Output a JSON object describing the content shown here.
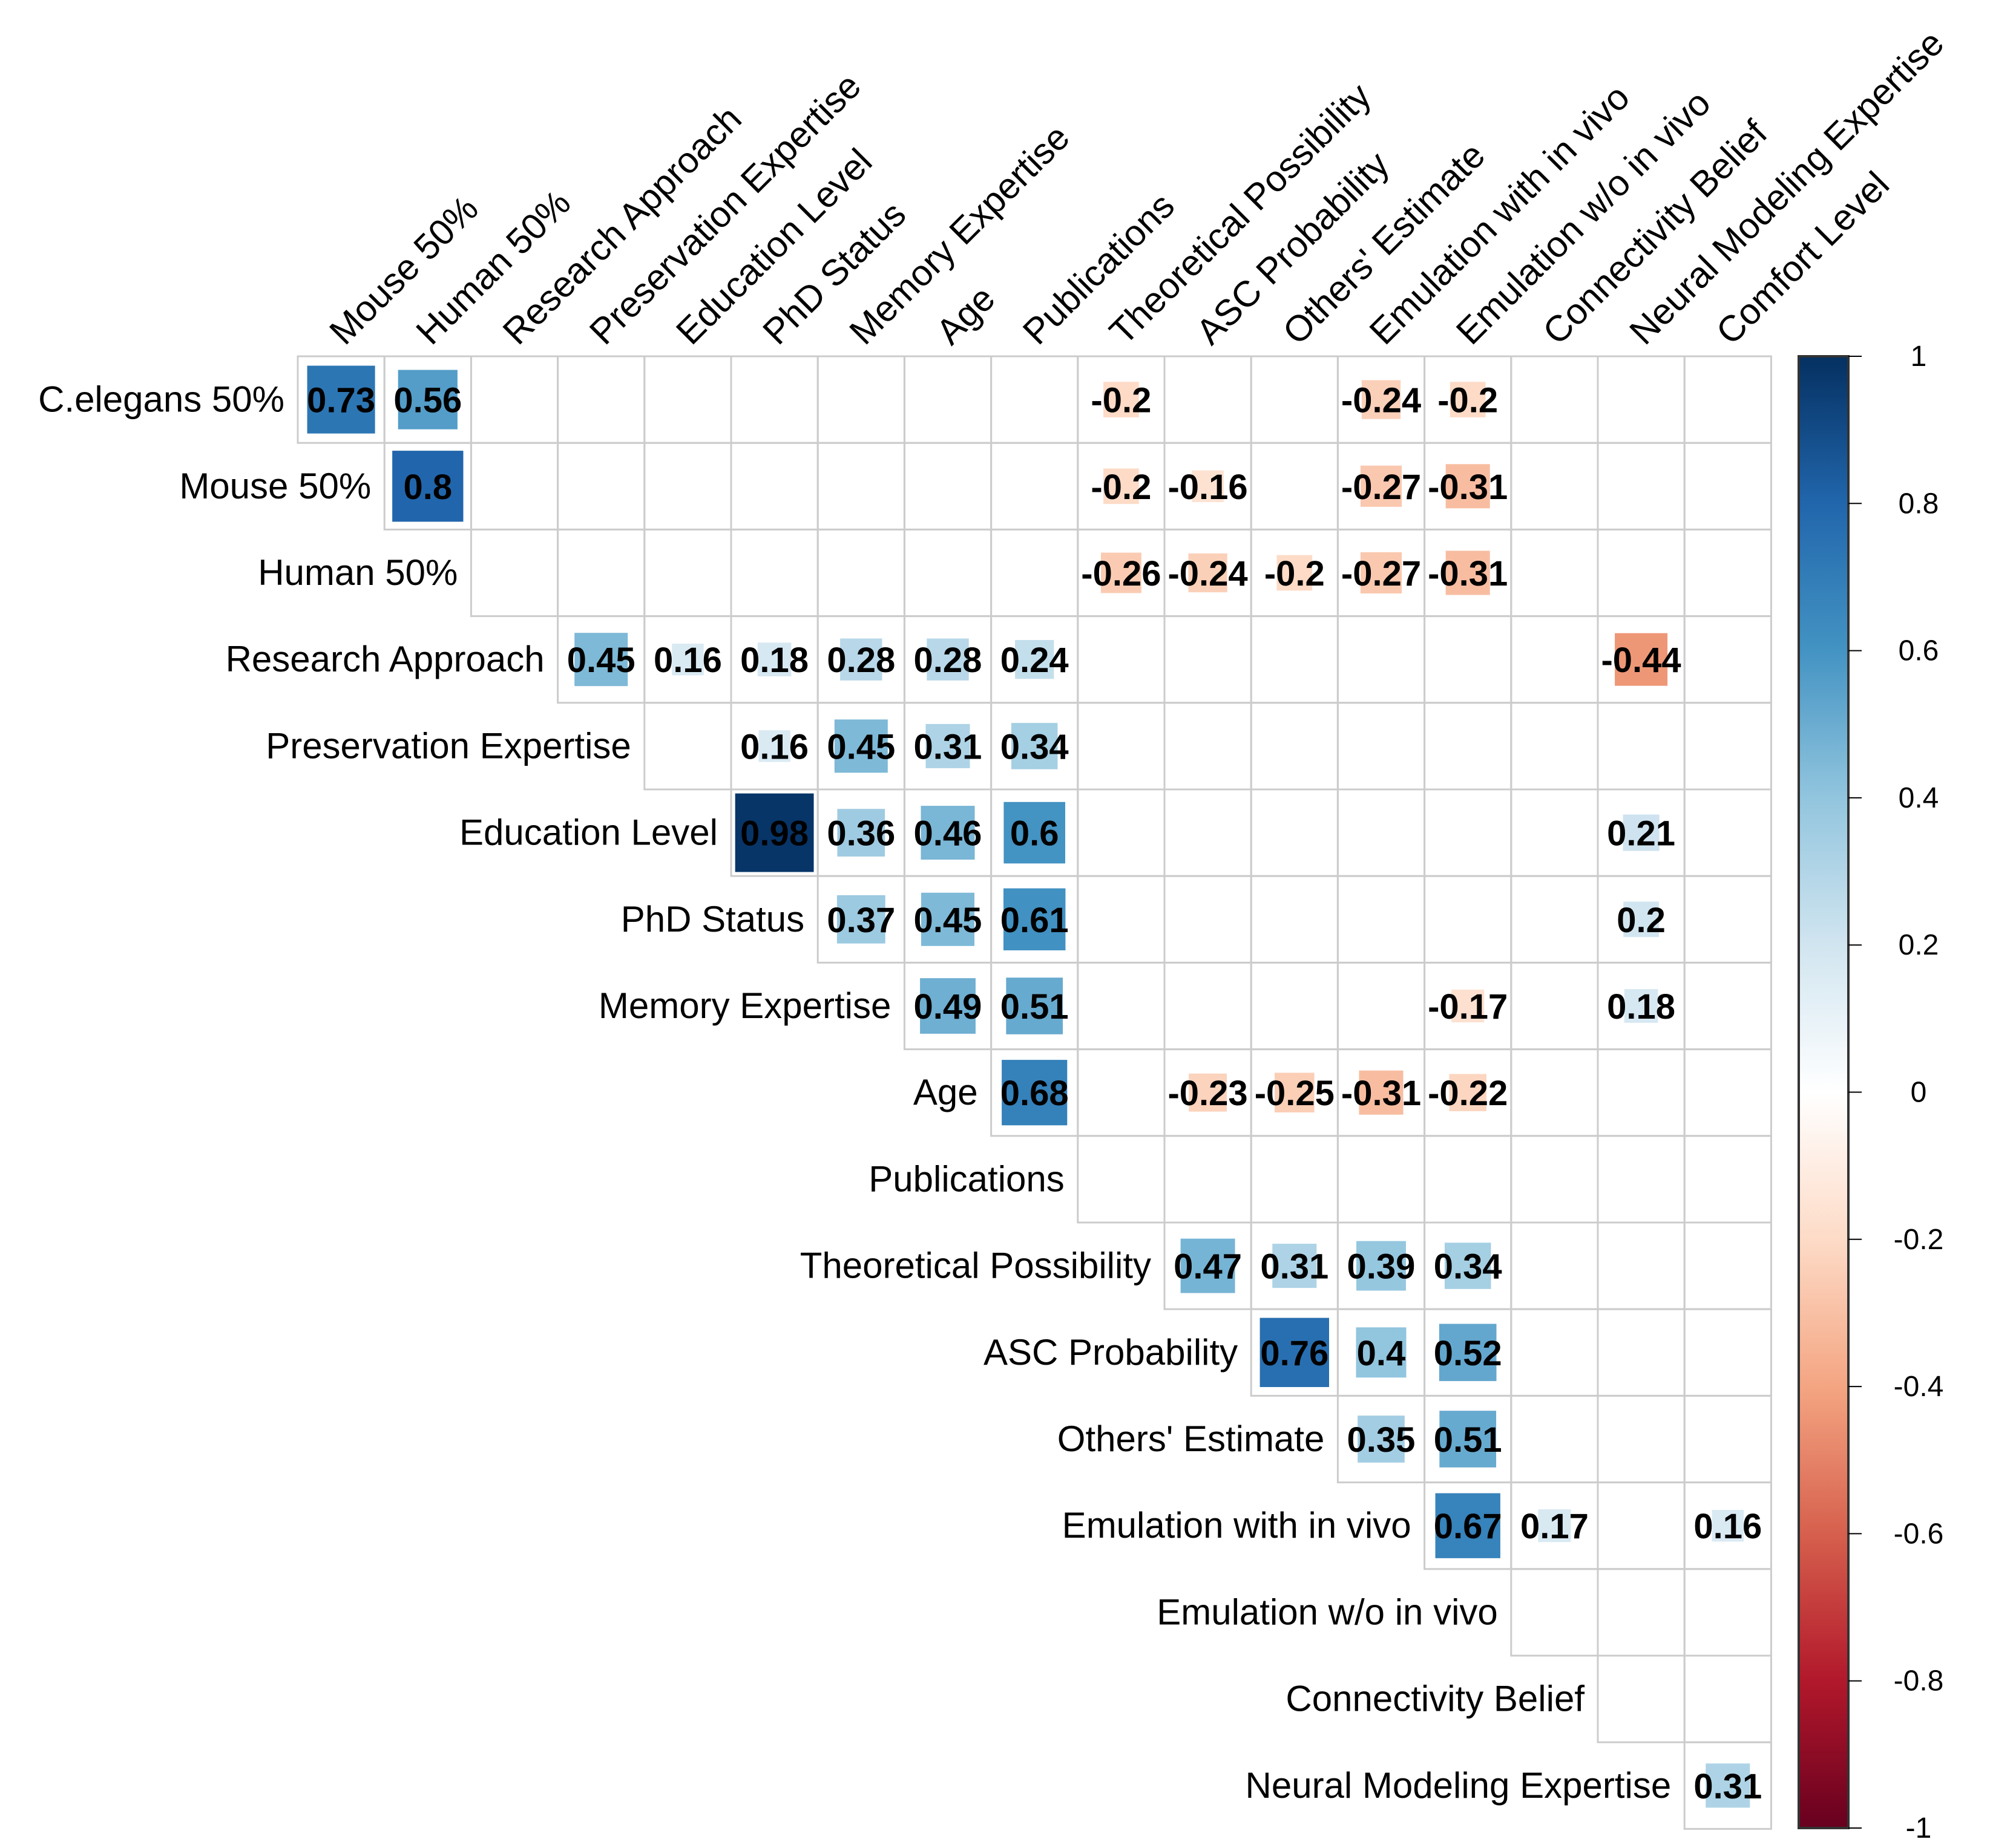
{
  "chart_data": {
    "type": "heatmap",
    "subtype": "correlation-matrix-upper-triangle",
    "title": "",
    "row_labels": [
      "C.elegans 50%",
      "Mouse 50%",
      "Human 50%",
      "Research Approach",
      "Preservation Expertise",
      "Education Level",
      "PhD Status",
      "Memory Expertise",
      "Age",
      "Publications",
      "Theoretical Possibility",
      "ASC Probability",
      "Others' Estimate",
      "Emulation with in vivo",
      "Emulation w/o in vivo",
      "Connectivity Belief",
      "Neural Modeling Expertise"
    ],
    "col_labels": [
      "Mouse 50%",
      "Human 50%",
      "Research Approach",
      "Preservation Expertise",
      "Education Level",
      "PhD Status",
      "Memory Expertise",
      "Age",
      "Publications",
      "Theoretical Possibility",
      "ASC Probability",
      "Others' Estimate",
      "Emulation with in vivo",
      "Emulation w/o in vivo",
      "Connectivity Belief",
      "Neural Modeling Expertise",
      "Comfort Level"
    ],
    "cells": [
      {
        "row": "C.elegans 50%",
        "col": "Mouse 50%",
        "value": 0.73,
        "label": "0.73"
      },
      {
        "row": "C.elegans 50%",
        "col": "Human 50%",
        "value": 0.56,
        "label": "0.56"
      },
      {
        "row": "C.elegans 50%",
        "col": "Theoretical Possibility",
        "value": -0.2,
        "label": "-0.2"
      },
      {
        "row": "C.elegans 50%",
        "col": "Emulation with in vivo",
        "value": -0.24,
        "label": "-0.24"
      },
      {
        "row": "C.elegans 50%",
        "col": "Emulation w/o in vivo",
        "value": -0.2,
        "label": "-0.2"
      },
      {
        "row": "Mouse 50%",
        "col": "Human 50%",
        "value": 0.8,
        "label": "0.8"
      },
      {
        "row": "Mouse 50%",
        "col": "Theoretical Possibility",
        "value": -0.2,
        "label": "-0.2"
      },
      {
        "row": "Mouse 50%",
        "col": "ASC Probability",
        "value": -0.16,
        "label": "-0.16"
      },
      {
        "row": "Mouse 50%",
        "col": "Emulation with in vivo",
        "value": -0.27,
        "label": "-0.27"
      },
      {
        "row": "Mouse 50%",
        "col": "Emulation w/o in vivo",
        "value": -0.31,
        "label": "-0.31"
      },
      {
        "row": "Human 50%",
        "col": "Theoretical Possibility",
        "value": -0.26,
        "label": "-0.26"
      },
      {
        "row": "Human 50%",
        "col": "ASC Probability",
        "value": -0.24,
        "label": "-0.24"
      },
      {
        "row": "Human 50%",
        "col": "Others' Estimate",
        "value": -0.2,
        "label": "-0.2"
      },
      {
        "row": "Human 50%",
        "col": "Emulation with in vivo",
        "value": -0.27,
        "label": "-0.27"
      },
      {
        "row": "Human 50%",
        "col": "Emulation w/o in vivo",
        "value": -0.31,
        "label": "-0.31"
      },
      {
        "row": "Research Approach",
        "col": "Preservation Expertise",
        "value": 0.45,
        "label": "0.45"
      },
      {
        "row": "Research Approach",
        "col": "Education Level",
        "value": 0.16,
        "label": "0.16"
      },
      {
        "row": "Research Approach",
        "col": "PhD Status",
        "value": 0.18,
        "label": "0.18"
      },
      {
        "row": "Research Approach",
        "col": "Memory Expertise",
        "value": 0.28,
        "label": "0.28"
      },
      {
        "row": "Research Approach",
        "col": "Age",
        "value": 0.28,
        "label": "0.28"
      },
      {
        "row": "Research Approach",
        "col": "Publications",
        "value": 0.24,
        "label": "0.24"
      },
      {
        "row": "Research Approach",
        "col": "Neural Modeling Expertise",
        "value": -0.44,
        "label": "-0.44"
      },
      {
        "row": "Preservation Expertise",
        "col": "PhD Status",
        "value": 0.16,
        "label": "0.16"
      },
      {
        "row": "Preservation Expertise",
        "col": "Memory Expertise",
        "value": 0.45,
        "label": "0.45"
      },
      {
        "row": "Preservation Expertise",
        "col": "Age",
        "value": 0.31,
        "label": "0.31"
      },
      {
        "row": "Preservation Expertise",
        "col": "Publications",
        "value": 0.34,
        "label": "0.34"
      },
      {
        "row": "Education Level",
        "col": "PhD Status",
        "value": 0.98,
        "label": "0.98"
      },
      {
        "row": "Education Level",
        "col": "Memory Expertise",
        "value": 0.36,
        "label": "0.36"
      },
      {
        "row": "Education Level",
        "col": "Age",
        "value": 0.46,
        "label": "0.46"
      },
      {
        "row": "Education Level",
        "col": "Publications",
        "value": 0.6,
        "label": "0.6"
      },
      {
        "row": "Education Level",
        "col": "Neural Modeling Expertise",
        "value": 0.21,
        "label": "0.21"
      },
      {
        "row": "PhD Status",
        "col": "Memory Expertise",
        "value": 0.37,
        "label": "0.37"
      },
      {
        "row": "PhD Status",
        "col": "Age",
        "value": 0.45,
        "label": "0.45"
      },
      {
        "row": "PhD Status",
        "col": "Publications",
        "value": 0.61,
        "label": "0.61"
      },
      {
        "row": "PhD Status",
        "col": "Neural Modeling Expertise",
        "value": 0.2,
        "label": "0.2"
      },
      {
        "row": "Memory Expertise",
        "col": "Age",
        "value": 0.49,
        "label": "0.49"
      },
      {
        "row": "Memory Expertise",
        "col": "Publications",
        "value": 0.51,
        "label": "0.51"
      },
      {
        "row": "Memory Expertise",
        "col": "Emulation w/o in vivo",
        "value": -0.17,
        "label": "-0.17"
      },
      {
        "row": "Memory Expertise",
        "col": "Neural Modeling Expertise",
        "value": 0.18,
        "label": "0.18"
      },
      {
        "row": "Age",
        "col": "Publications",
        "value": 0.68,
        "label": "0.68"
      },
      {
        "row": "Age",
        "col": "ASC Probability",
        "value": -0.23,
        "label": "-0.23"
      },
      {
        "row": "Age",
        "col": "Others' Estimate",
        "value": -0.25,
        "label": "-0.25"
      },
      {
        "row": "Age",
        "col": "Emulation with in vivo",
        "value": -0.31,
        "label": "-0.31"
      },
      {
        "row": "Age",
        "col": "Emulation w/o in vivo",
        "value": -0.22,
        "label": "-0.22"
      },
      {
        "row": "Theoretical Possibility",
        "col": "ASC Probability",
        "value": 0.47,
        "label": "0.47"
      },
      {
        "row": "Theoretical Possibility",
        "col": "Others' Estimate",
        "value": 0.31,
        "label": "0.31"
      },
      {
        "row": "Theoretical Possibility",
        "col": "Emulation with in vivo",
        "value": 0.39,
        "label": "0.39"
      },
      {
        "row": "Theoretical Possibility",
        "col": "Emulation w/o in vivo",
        "value": 0.34,
        "label": "0.34"
      },
      {
        "row": "ASC Probability",
        "col": "Others' Estimate",
        "value": 0.76,
        "label": "0.76"
      },
      {
        "row": "ASC Probability",
        "col": "Emulation with in vivo",
        "value": 0.4,
        "label": "0.4"
      },
      {
        "row": "ASC Probability",
        "col": "Emulation w/o in vivo",
        "value": 0.52,
        "label": "0.52"
      },
      {
        "row": "Others' Estimate",
        "col": "Emulation with in vivo",
        "value": 0.35,
        "label": "0.35"
      },
      {
        "row": "Others' Estimate",
        "col": "Emulation w/o in vivo",
        "value": 0.51,
        "label": "0.51"
      },
      {
        "row": "Emulation with in vivo",
        "col": "Emulation w/o in vivo",
        "value": 0.67,
        "label": "0.67"
      },
      {
        "row": "Emulation with in vivo",
        "col": "Connectivity Belief",
        "value": 0.17,
        "label": "0.17"
      },
      {
        "row": "Emulation with in vivo",
        "col": "Comfort Level",
        "value": 0.16,
        "label": "0.16"
      },
      {
        "row": "Neural Modeling Expertise",
        "col": "Comfort Level",
        "value": 0.31,
        "label": "0.31"
      }
    ],
    "colorbar": {
      "range": [
        -1,
        1
      ],
      "ticks": [
        "1",
        "0.8",
        "0.6",
        "0.4",
        "0.2",
        "0",
        "-0.2",
        "-0.4",
        "-0.6",
        "-0.8",
        "-1"
      ],
      "tick_values": [
        1,
        0.8,
        0.6,
        0.4,
        0.2,
        0,
        -0.2,
        -0.4,
        -0.6,
        -0.8,
        -1
      ],
      "placement": "right",
      "colormap": [
        "#67001F",
        "#B2182B",
        "#D6604D",
        "#F4A582",
        "#FDDBC7",
        "#FFFFFF",
        "#D1E5F0",
        "#92C5DE",
        "#4393C3",
        "#2166AC",
        "#053061"
      ]
    },
    "grid": true,
    "grid_color": "#CCCCCC",
    "xlabel": "",
    "ylabel": ""
  }
}
